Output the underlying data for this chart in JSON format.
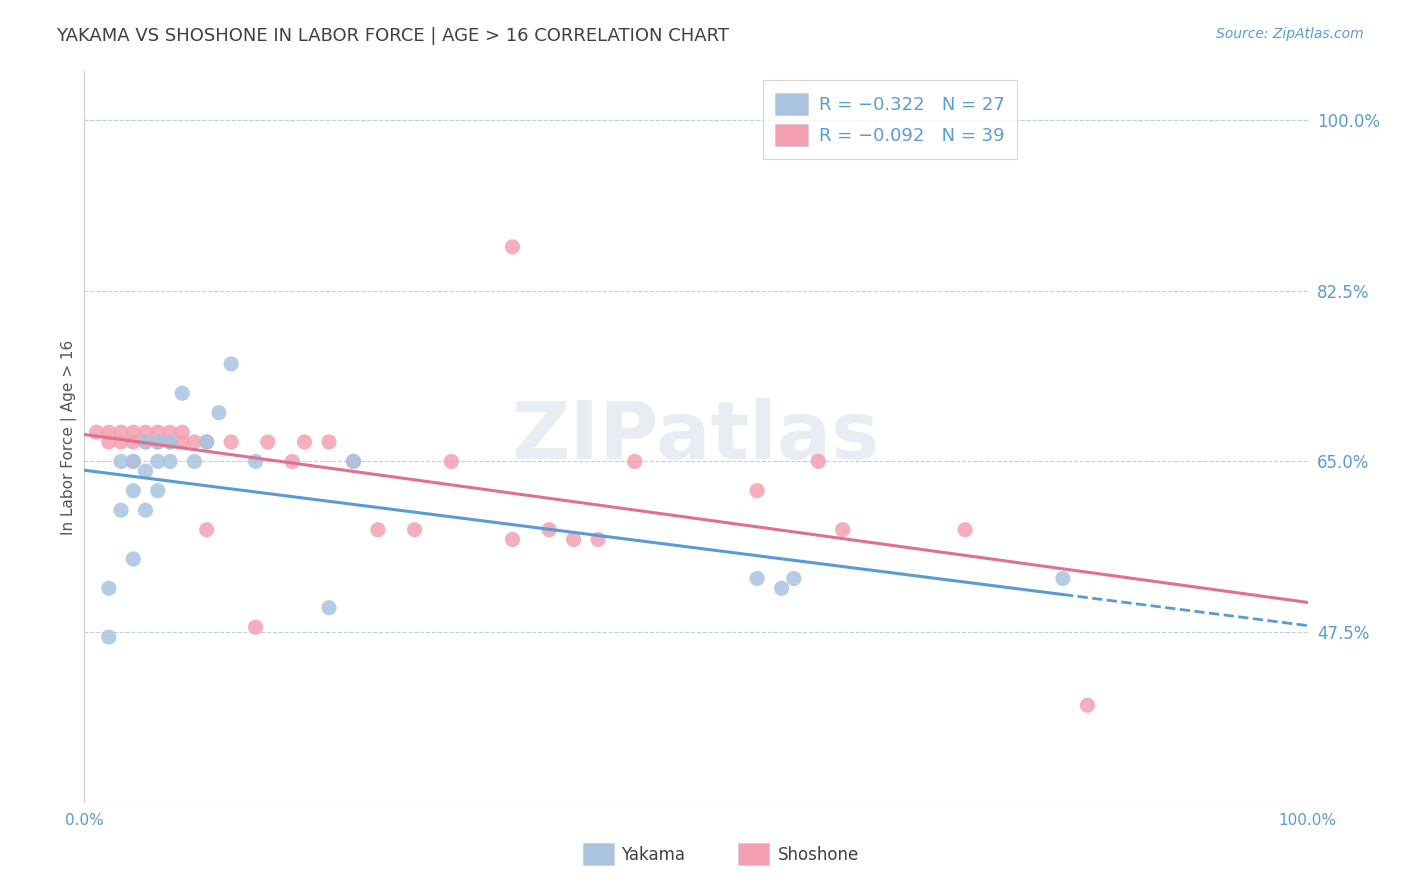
{
  "title": "YAKAMA VS SHOSHONE IN LABOR FORCE | AGE > 16 CORRELATION CHART",
  "source_text": "Source: ZipAtlas.com",
  "ylabel": "In Labor Force | Age > 16",
  "xlim": [
    0.0,
    1.0
  ],
  "ylim": [
    0.3,
    1.05
  ],
  "yticks": [
    0.475,
    0.65,
    0.825,
    1.0
  ],
  "ytick_labels": [
    "47.5%",
    "65.0%",
    "82.5%",
    "100.0%"
  ],
  "xtick_labels": [
    "0.0%",
    "",
    "",
    "",
    "",
    "100.0%"
  ],
  "xticks": [
    0.0,
    0.2,
    0.4,
    0.6,
    0.8,
    1.0
  ],
  "watermark": "ZIPatlas",
  "legend_r1": "R = -0.322",
  "legend_n1": "N = 27",
  "legend_r2": "R = -0.092",
  "legend_n2": "N = 39",
  "yakama_color": "#a8c4e0",
  "shoshone_color": "#f4a0b0",
  "trend_yakama_solid_color": "#5b9bd5",
  "trend_yakama_dash_color": "#5b9bd5",
  "trend_shoshone_color": "#e07090",
  "title_color": "#404040",
  "axis_label_color": "#5b9bd5",
  "grid_color": "#c0cfe0",
  "background_color": "#ffffff",
  "yakama_x": [
    0.02,
    0.02,
    0.03,
    0.03,
    0.04,
    0.04,
    0.04,
    0.05,
    0.05,
    0.05,
    0.06,
    0.06,
    0.06,
    0.07,
    0.07,
    0.08,
    0.09,
    0.1,
    0.11,
    0.12,
    0.14,
    0.2,
    0.22,
    0.55,
    0.57,
    0.58,
    0.8
  ],
  "yakama_y": [
    0.47,
    0.52,
    0.65,
    0.6,
    0.65,
    0.62,
    0.55,
    0.67,
    0.64,
    0.6,
    0.67,
    0.65,
    0.62,
    0.67,
    0.65,
    0.72,
    0.65,
    0.67,
    0.7,
    0.75,
    0.65,
    0.5,
    0.65,
    0.53,
    0.52,
    0.53,
    0.53
  ],
  "shoshone_x": [
    0.01,
    0.02,
    0.02,
    0.03,
    0.03,
    0.04,
    0.04,
    0.04,
    0.05,
    0.05,
    0.06,
    0.06,
    0.07,
    0.07,
    0.08,
    0.08,
    0.09,
    0.1,
    0.1,
    0.12,
    0.14,
    0.15,
    0.17,
    0.18,
    0.2,
    0.22,
    0.24,
    0.27,
    0.3,
    0.35,
    0.38,
    0.4,
    0.42,
    0.45,
    0.55,
    0.6,
    0.62,
    0.72,
    0.82
  ],
  "shoshone_y": [
    0.68,
    0.68,
    0.67,
    0.68,
    0.67,
    0.68,
    0.67,
    0.65,
    0.68,
    0.67,
    0.68,
    0.67,
    0.68,
    0.67,
    0.68,
    0.67,
    0.67,
    0.58,
    0.67,
    0.67,
    0.48,
    0.67,
    0.65,
    0.67,
    0.67,
    0.65,
    0.58,
    0.58,
    0.65,
    0.57,
    0.58,
    0.57,
    0.57,
    0.65,
    0.62,
    0.65,
    0.58,
    0.58,
    0.4
  ],
  "shoshone_outlier_x": [
    0.35
  ],
  "shoshone_outlier_y": [
    0.87
  ]
}
